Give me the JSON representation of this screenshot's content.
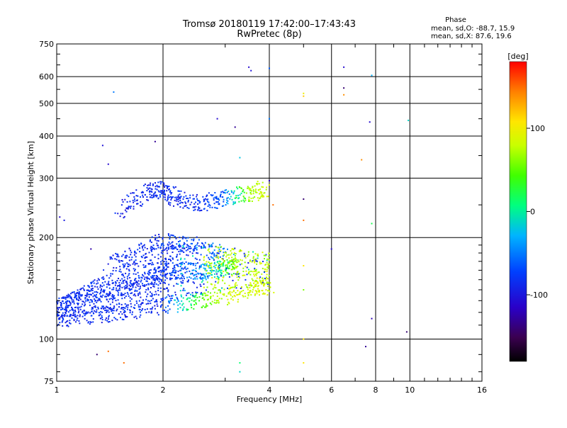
{
  "chart_data": {
    "type": "scatter",
    "title": "Tromsø 20180119 17:42:00–17:43:43",
    "subtitle": "RwPretec (8p)",
    "xlabel": "Frequency [MHz]",
    "ylabel": "Stationary phase Virtual Height [km]",
    "x_scale": "log",
    "y_scale": "log",
    "xlim": [
      1,
      16
    ],
    "ylim": [
      75,
      750
    ],
    "x_ticks": [
      1,
      2,
      4,
      6,
      8,
      10,
      16
    ],
    "x_tick_labels": [
      "1",
      "2",
      "4",
      "6",
      "8",
      "10",
      "16"
    ],
    "y_ticks": [
      75,
      100,
      200,
      300,
      400,
      500,
      600,
      750
    ],
    "y_tick_labels": [
      "75",
      "100",
      "200",
      "300",
      "400",
      "500",
      "600",
      "750"
    ],
    "phase_stats": {
      "heading": "Phase",
      "line_o": "mean, sd,O: -88.7, 15.9",
      "line_x": "mean, sd,X:  87.6, 19.6"
    },
    "colorbar": {
      "label": "[deg]",
      "ticks": [
        100,
        0,
        -100
      ],
      "tick_labels": [
        "100",
        "0",
        "-100"
      ],
      "range": [
        -180,
        180
      ]
    },
    "series": [
      {
        "traces": [
          {
            "x": [
              1.0,
              1.3,
              1.6,
              2.0,
              2.5,
              3.0,
              3.6,
              4.0
            ],
            "y": [
              113,
              118,
              121,
              126,
              130,
              134,
              140,
              145
            ],
            "phase": [
              -95,
              -92,
              -90,
              -88,
              40,
              85,
              88,
              90
            ]
          },
          {
            "x": [
              1.0,
              1.2,
              1.5,
              1.8,
              2.0,
              2.3,
              2.7,
              3.0,
              3.3
            ],
            "y": [
              124,
              132,
              142,
              150,
              158,
              160,
              158,
              162,
              165
            ],
            "phase": [
              -90,
              -88,
              -90,
              -87,
              -85,
              -70,
              -40,
              20,
              80
            ]
          },
          {
            "x": [
              1.4,
              1.7,
              2.0,
              2.4,
              3.0
            ],
            "y": [
              165,
              180,
              195,
              190,
              180
            ],
            "phase": [
              -92,
              -90,
              -88,
              -80,
              -60
            ]
          },
          {
            "x": [
              1.5,
              1.8,
              2.0,
              2.2,
              2.6,
              3.0,
              3.5,
              3.9
            ],
            "y": [
              240,
              272,
              280,
              260,
              252,
              262,
              270,
              280
            ],
            "phase": [
              -95,
              -93,
              -90,
              -92,
              -88,
              -70,
              70,
              85
            ]
          }
        ]
      }
    ],
    "scatter_points": [
      {
        "x": 1.45,
        "y": 540,
        "phase": -60
      },
      {
        "x": 1.4,
        "y": 330,
        "phase": -110
      },
      {
        "x": 1.9,
        "y": 385,
        "phase": -130
      },
      {
        "x": 1.35,
        "y": 375,
        "phase": -105
      },
      {
        "x": 3.5,
        "y": 640,
        "phase": -110
      },
      {
        "x": 3.55,
        "y": 625,
        "phase": -105
      },
      {
        "x": 4.0,
        "y": 635,
        "phase": -70
      },
      {
        "x": 4.0,
        "y": 450,
        "phase": -60
      },
      {
        "x": 6.5,
        "y": 640,
        "phase": -110
      },
      {
        "x": 6.5,
        "y": 555,
        "phase": -140
      },
      {
        "x": 6.5,
        "y": 530,
        "phase": 140
      },
      {
        "x": 7.8,
        "y": 605,
        "phase": -40
      },
      {
        "x": 7.7,
        "y": 440,
        "phase": -110
      },
      {
        "x": 7.3,
        "y": 340,
        "phase": 140
      },
      {
        "x": 9.9,
        "y": 445,
        "phase": -20
      },
      {
        "x": 5.0,
        "y": 535,
        "phase": 100
      },
      {
        "x": 5.0,
        "y": 525,
        "phase": 120
      },
      {
        "x": 3.2,
        "y": 425,
        "phase": -130
      },
      {
        "x": 2.85,
        "y": 450,
        "phase": -110
      },
      {
        "x": 3.3,
        "y": 345,
        "phase": -30
      },
      {
        "x": 4.0,
        "y": 295,
        "phase": -120
      },
      {
        "x": 5.0,
        "y": 260,
        "phase": -140
      },
      {
        "x": 4.1,
        "y": 250,
        "phase": 150
      },
      {
        "x": 5.0,
        "y": 225,
        "phase": 150
      },
      {
        "x": 7.8,
        "y": 220,
        "phase": 20
      },
      {
        "x": 6.0,
        "y": 185,
        "phase": -110
      },
      {
        "x": 5.0,
        "y": 165,
        "phase": 110
      },
      {
        "x": 5.0,
        "y": 140,
        "phase": 60
      },
      {
        "x": 7.8,
        "y": 115,
        "phase": -120
      },
      {
        "x": 7.5,
        "y": 95,
        "phase": -130
      },
      {
        "x": 9.8,
        "y": 105,
        "phase": -140
      },
      {
        "x": 5.0,
        "y": 100,
        "phase": 110
      },
      {
        "x": 5.0,
        "y": 85,
        "phase": 110
      },
      {
        "x": 3.3,
        "y": 85,
        "phase": 10
      },
      {
        "x": 3.3,
        "y": 80,
        "phase": -20
      },
      {
        "x": 1.3,
        "y": 90,
        "phase": -140
      },
      {
        "x": 1.4,
        "y": 92,
        "phase": 150
      },
      {
        "x": 1.55,
        "y": 85,
        "phase": 150
      },
      {
        "x": 1.25,
        "y": 185,
        "phase": -125
      },
      {
        "x": 1.02,
        "y": 230,
        "phase": -110
      },
      {
        "x": 1.05,
        "y": 225,
        "phase": -100
      }
    ]
  }
}
